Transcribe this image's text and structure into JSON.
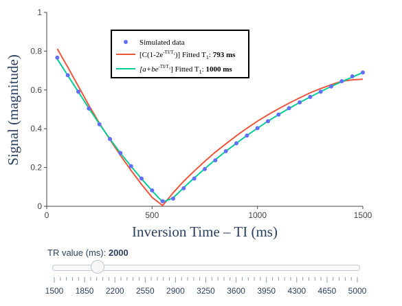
{
  "chart_data": {
    "type": "scatter",
    "xlabel": "Inversion Time – TI (ms)",
    "ylabel": "Signal (magnitude)",
    "xlim": [
      0,
      1500
    ],
    "ylim": [
      0,
      1
    ],
    "x_ticks": [
      "0",
      "500",
      "1000",
      "1500"
    ],
    "y_ticks": [
      "0",
      "0.2",
      "0.4",
      "0.6",
      "0.8",
      "1"
    ],
    "legend_position": "top-center",
    "series": [
      {
        "name": "Simulated data",
        "mode": "markers",
        "color": "#636efa",
        "x": [
          50,
          100,
          150,
          200,
          250,
          300,
          350,
          400,
          450,
          500,
          550,
          600,
          650,
          700,
          750,
          800,
          850,
          900,
          950,
          1000,
          1050,
          1100,
          1150,
          1200,
          1250,
          1300,
          1350,
          1400,
          1450,
          1500
        ],
        "y": [
          0.767,
          0.676,
          0.591,
          0.504,
          0.423,
          0.347,
          0.275,
          0.207,
          0.143,
          0.082,
          0.026,
          0.04,
          0.093,
          0.143,
          0.192,
          0.237,
          0.284,
          0.325,
          0.365,
          0.403,
          0.439,
          0.473,
          0.506,
          0.536,
          0.564,
          0.591,
          0.618,
          0.645,
          0.67,
          0.69
        ]
      },
      {
        "name": "[C(1-2e^{-TI/T1})] Fitted T1: 793 ms",
        "mode": "line",
        "color": "#ef553b",
        "x": [
          50,
          100,
          150,
          200,
          250,
          300,
          350,
          400,
          450,
          500,
          550,
          600,
          650,
          700,
          750,
          800,
          850,
          900,
          950,
          1000,
          1050,
          1100,
          1150,
          1200,
          1250,
          1300,
          1350,
          1400,
          1450,
          1500
        ],
        "y": [
          0.812,
          0.717,
          0.619,
          0.521,
          0.428,
          0.344,
          0.262,
          0.185,
          0.113,
          0.046,
          0.004,
          0.07,
          0.129,
          0.182,
          0.232,
          0.279,
          0.322,
          0.364,
          0.402,
          0.439,
          0.472,
          0.503,
          0.532,
          0.559,
          0.585,
          0.607,
          0.627,
          0.645,
          0.652,
          0.655
        ]
      },
      {
        "name": "[a+be^{-TI/T1}] Fitted T1: 1000 ms",
        "mode": "line",
        "color": "#00cc96",
        "x": [
          50,
          100,
          150,
          200,
          250,
          300,
          350,
          400,
          450,
          500,
          550,
          600,
          650,
          700,
          750,
          800,
          850,
          900,
          950,
          1000,
          1050,
          1100,
          1150,
          1200,
          1250,
          1300,
          1350,
          1400,
          1450,
          1500
        ],
        "y": [
          0.76,
          0.674,
          0.59,
          0.506,
          0.424,
          0.347,
          0.274,
          0.206,
          0.142,
          0.08,
          0.022,
          0.043,
          0.096,
          0.146,
          0.194,
          0.24,
          0.284,
          0.325,
          0.365,
          0.403,
          0.439,
          0.473,
          0.505,
          0.535,
          0.564,
          0.592,
          0.618,
          0.643,
          0.666,
          0.69
        ]
      }
    ]
  },
  "legend": {
    "item1": "Simulated data",
    "item2_prefix": "[C(1-2e",
    "item2_sup": "-TI/T",
    "item2_sup_sub": "1",
    "item2_mid": ")] Fitted T",
    "item2_sub": "1",
    "item2_colon": ": ",
    "item2_value": "793 ms",
    "item3_prefix": "[a+be",
    "item3_sup": "-TI/T",
    "item3_sup_sub": "1",
    "item3_mid": "] Fitted T",
    "item3_sub": "1",
    "item3_colon": ": ",
    "item3_value": "1000 ms"
  },
  "slider": {
    "title_prefix": "TR value (ms): ",
    "current_value": "2000",
    "current_fraction": 0.143,
    "labels": [
      "1500",
      "1850",
      "2200",
      "2550",
      "2900",
      "3250",
      "3600",
      "3950",
      "4300",
      "4650",
      "5000"
    ]
  }
}
